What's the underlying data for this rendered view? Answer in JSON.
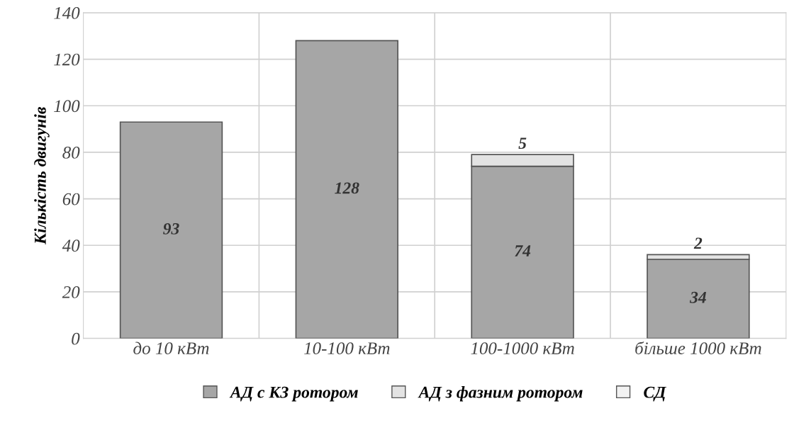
{
  "chart_data": {
    "type": "bar",
    "stacked": true,
    "ylabel": "Кількість двигунів",
    "categories": [
      "до 10 кВт",
      "10-100 кВт",
      "100-1000 кВт",
      "більше 1000 кВт"
    ],
    "series": [
      {
        "name": "АД с КЗ ротором",
        "color": "#a6a6a6",
        "values": [
          93,
          128,
          74,
          34
        ],
        "value_labels": [
          "93",
          "128",
          "74",
          "34"
        ]
      },
      {
        "name": "АД з фазним ротором",
        "color": "#e3e3e3",
        "values": [
          null,
          null,
          5,
          2
        ],
        "value_labels": [
          null,
          null,
          "5",
          "2"
        ]
      },
      {
        "name": "СД",
        "color": "#f2f2f2",
        "values": [
          null,
          null,
          null,
          null
        ]
      }
    ],
    "ylim": [
      0,
      140
    ],
    "yticks": [
      0,
      20,
      40,
      60,
      80,
      100,
      120,
      140
    ],
    "grid": true,
    "legend": "bottom"
  }
}
